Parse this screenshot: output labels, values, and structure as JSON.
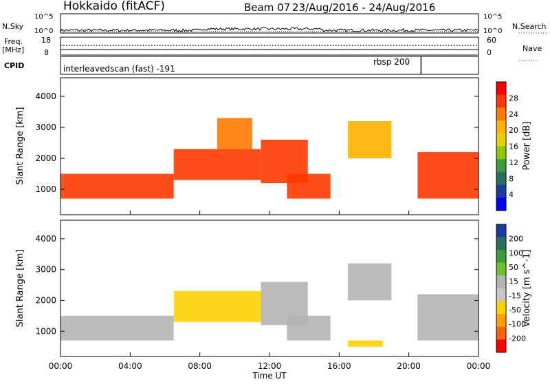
{
  "header": {
    "station": "Hokkaido (fitACF)",
    "beam": "Beam 07",
    "date_range": "23/Aug/2016 - 24/Aug/2016"
  },
  "top_panels": {
    "nsky_label": "N.Sky",
    "nsky_ticks": [
      "10^5",
      "10^0"
    ],
    "nsearch_label": "N.Search",
    "nsearch_ticks": [
      "10^5",
      "10^0"
    ],
    "freq_label": "Freq.",
    "freq_unit": "[MHz]",
    "freq_ticks": [
      "18",
      "8"
    ],
    "nave_label": "Nave",
    "nave_ticks": [
      "60",
      "0"
    ],
    "cpid_label": "CPID",
    "cpid_modes": [
      {
        "text": "interleavedscan (fast) -191",
        "start_hour": 0
      },
      {
        "text": "rbsp 200",
        "start_hour": 20.7
      }
    ]
  },
  "chart_data": [
    {
      "type": "heatmap",
      "title": "",
      "quantity": "Power",
      "xlabel": "",
      "ylabel": "Slant Range [km]",
      "colorbar_label": "Power [dB]",
      "colorbar_ticks": [
        "28",
        "24",
        "20",
        "16",
        "12",
        "8",
        "4"
      ],
      "colorbar_colors": [
        "#ff0000",
        "#ff3a00",
        "#ff7a00",
        "#ffb300",
        "#e6d200",
        "#8fc800",
        "#3c9c3c",
        "#2a6e60",
        "#1c3ca0",
        "#0000ff"
      ],
      "xlim_hours": [
        0,
        24
      ],
      "ylim_km": [
        180,
        4600
      ],
      "yticks": [
        1000,
        2000,
        3000,
        4000
      ],
      "regions": [
        {
          "start_hour": 0.0,
          "end_hour": 6.5,
          "range_min_km": 700,
          "range_max_km": 1500,
          "power_db": 28
        },
        {
          "start_hour": 6.5,
          "end_hour": 11.5,
          "range_min_km": 1300,
          "range_max_km": 2300,
          "power_db": 26
        },
        {
          "start_hour": 9.0,
          "end_hour": 11.0,
          "range_min_km": 2300,
          "range_max_km": 3300,
          "power_db": 24
        },
        {
          "start_hour": 11.5,
          "end_hour": 14.2,
          "range_min_km": 1200,
          "range_max_km": 2600,
          "power_db": 26
        },
        {
          "start_hour": 13.0,
          "end_hour": 15.5,
          "range_min_km": 700,
          "range_max_km": 1500,
          "power_db": 28
        },
        {
          "start_hour": 16.5,
          "end_hour": 19.0,
          "range_min_km": 2000,
          "range_max_km": 3200,
          "power_db": 22
        },
        {
          "start_hour": 20.5,
          "end_hour": 24.0,
          "range_min_km": 700,
          "range_max_km": 2200,
          "power_db": 26
        }
      ]
    },
    {
      "type": "heatmap",
      "title": "",
      "quantity": "Velocity",
      "xlabel": "Time UT",
      "ylabel": "Slant Range [km]",
      "colorbar_label": "Velocity [m s^-1]",
      "colorbar_ticks": [
        "200",
        "100",
        "50",
        "15",
        "-15",
        "-50",
        "-100",
        "-200"
      ],
      "colorbar_colors": [
        "#1c3ca0",
        "#2a6e60",
        "#3c9c3c",
        "#70c030",
        "#b4b4b4",
        "#c8c8c8",
        "#ffd200",
        "#ffa000",
        "#ff6000",
        "#ff0000"
      ],
      "xlim_hours": [
        0,
        24
      ],
      "ylim_km": [
        180,
        4600
      ],
      "yticks": [
        1000,
        2000,
        3000,
        4000
      ],
      "xticks": [
        "00:00",
        "04:00",
        "08:00",
        "12:00",
        "16:00",
        "20:00",
        "00:00"
      ],
      "regions": [
        {
          "start_hour": 0.0,
          "end_hour": 6.5,
          "range_min_km": 700,
          "range_max_km": 1500,
          "velocity_ms": 0
        },
        {
          "start_hour": 6.5,
          "end_hour": 11.5,
          "range_min_km": 1300,
          "range_max_km": 2300,
          "velocity_ms": -40
        },
        {
          "start_hour": 11.5,
          "end_hour": 14.2,
          "range_min_km": 1200,
          "range_max_km": 2600,
          "velocity_ms": 0
        },
        {
          "start_hour": 13.0,
          "end_hour": 15.5,
          "range_min_km": 700,
          "range_max_km": 1500,
          "velocity_ms": 0
        },
        {
          "start_hour": 16.5,
          "end_hour": 19.0,
          "range_min_km": 2000,
          "range_max_km": 3200,
          "velocity_ms": 0
        },
        {
          "start_hour": 16.5,
          "end_hour": 18.5,
          "range_min_km": 500,
          "range_max_km": 700,
          "velocity_ms": -60
        },
        {
          "start_hour": 20.5,
          "end_hour": 24.0,
          "range_min_km": 700,
          "range_max_km": 2200,
          "velocity_ms": 0
        }
      ]
    }
  ]
}
